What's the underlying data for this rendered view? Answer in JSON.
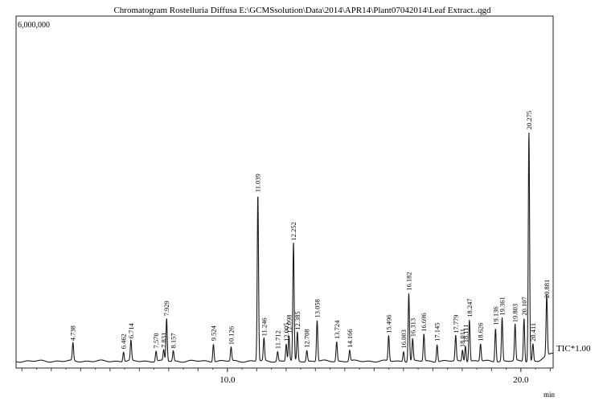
{
  "chart_data": {
    "type": "line",
    "title": "Chromatogram Rostelluria Diffusa E:\\GCMSsolution\\Data\\2014\\APR14\\Plant07042014\\Leaf Extract..qgd",
    "ylabel_top": "6,000,000",
    "xlabel": "min",
    "trace_label": "TIC*1.00",
    "xlim": [
      2.8,
      21.1
    ],
    "ylim": [
      0,
      6000000
    ],
    "x_ticks": [
      {
        "value": 10.0,
        "label": "10.0"
      },
      {
        "value": 20.0,
        "label": "20.0"
      }
    ],
    "baseline": 120000,
    "peaks": [
      {
        "rt": 4.738,
        "label": "4.738",
        "height": 430000
      },
      {
        "rt": 6.462,
        "label": "6.462",
        "height": 290000
      },
      {
        "rt": 6.714,
        "label": "6.714",
        "height": 470000
      },
      {
        "rt": 7.57,
        "label": "7.570",
        "height": 300000
      },
      {
        "rt": 7.929,
        "label": "7.929",
        "height": 860000
      },
      {
        "rt": 7.831,
        "label": "7.831",
        "height": 310000
      },
      {
        "rt": 8.157,
        "label": "8.157",
        "height": 300000
      },
      {
        "rt": 9.524,
        "label": "9.524",
        "height": 430000
      },
      {
        "rt": 10.126,
        "label": "10.126",
        "height": 360000
      },
      {
        "rt": 11.039,
        "label": "11.039",
        "height": 3010000
      },
      {
        "rt": 11.246,
        "label": "11.246",
        "height": 510000
      },
      {
        "rt": 11.712,
        "label": "11.712",
        "height": 290000
      },
      {
        "rt": 12.005,
        "label": "12.005",
        "height": 420000
      },
      {
        "rt": 12.098,
        "label": "12.098",
        "height": 560000
      },
      {
        "rt": 12.252,
        "label": "12.252",
        "height": 2170000
      },
      {
        "rt": 12.385,
        "label": "12.385",
        "height": 620000
      },
      {
        "rt": 12.708,
        "label": "12.708",
        "height": 310000
      },
      {
        "rt": 13.058,
        "label": "13.058",
        "height": 830000
      },
      {
        "rt": 13.724,
        "label": "13.724",
        "height": 460000
      },
      {
        "rt": 14.166,
        "label": "14.166",
        "height": 310000
      },
      {
        "rt": 15.496,
        "label": "15.496",
        "height": 560000
      },
      {
        "rt": 16.003,
        "label": "16.003",
        "height": 300000
      },
      {
        "rt": 16.182,
        "label": "16.182",
        "height": 1300000
      },
      {
        "rt": 16.313,
        "label": "16.313",
        "height": 500000
      },
      {
        "rt": 16.696,
        "label": "16.696",
        "height": 590000
      },
      {
        "rt": 17.145,
        "label": "17.145",
        "height": 420000
      },
      {
        "rt": 17.779,
        "label": "17.779",
        "height": 560000
      },
      {
        "rt": 18.011,
        "label": "18.011",
        "height": 320000
      },
      {
        "rt": 18.111,
        "label": "18.111",
        "height": 400000
      },
      {
        "rt": 18.247,
        "label": "18.247",
        "height": 840000
      },
      {
        "rt": 18.626,
        "label": "18.626",
        "height": 420000
      },
      {
        "rt": 19.136,
        "label": "19.136",
        "height": 700000
      },
      {
        "rt": 19.361,
        "label": "19.361",
        "height": 870000
      },
      {
        "rt": 19.803,
        "label": "19.803",
        "height": 750000
      },
      {
        "rt": 20.107,
        "label": "20.107",
        "height": 870000
      },
      {
        "rt": 20.275,
        "label": "20.275",
        "height": 4100000
      },
      {
        "rt": 20.411,
        "label": "20.411",
        "height": 420000
      },
      {
        "rt": 20.881,
        "label": "20.881",
        "height": 1170000
      }
    ]
  }
}
